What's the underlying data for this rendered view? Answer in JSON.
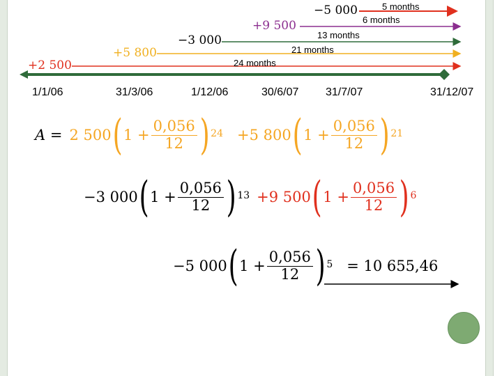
{
  "colors": {
    "green": "#2f6b3a",
    "purple": "#8b2e8f",
    "orange": "#f0b020",
    "red": "#e0301e",
    "black": "#000000",
    "formula_orange": "#f5a623",
    "formula_red": "#e0301e"
  },
  "timeline": {
    "dates": [
      "1/1/06",
      "31/3/06",
      "1/12/06",
      "30/6/07",
      "31/7/07",
      "31/12/07"
    ]
  },
  "deposits": [
    {
      "amount": "+2 500",
      "months": "24 months"
    },
    {
      "amount": "+5 800",
      "months": "21 months"
    },
    {
      "amount": "−3 000",
      "months": "13 months"
    },
    {
      "amount": "+9 500",
      "months": "6  months"
    },
    {
      "amount": "−5 000",
      "months": "5  months"
    }
  ],
  "formula": {
    "lhs": "A =",
    "rate": "0,056",
    "periods": "12",
    "one": "1 +",
    "terms": [
      {
        "coef": "2 500",
        "exp": "24"
      },
      {
        "coef": "+5 800",
        "exp": "21"
      },
      {
        "coef": "−3 000",
        "exp": "13"
      },
      {
        "coef": "+9 500",
        "exp": "6"
      },
      {
        "coef": "−5 000",
        "exp": "5"
      }
    ],
    "result": "= 10 655,46"
  }
}
